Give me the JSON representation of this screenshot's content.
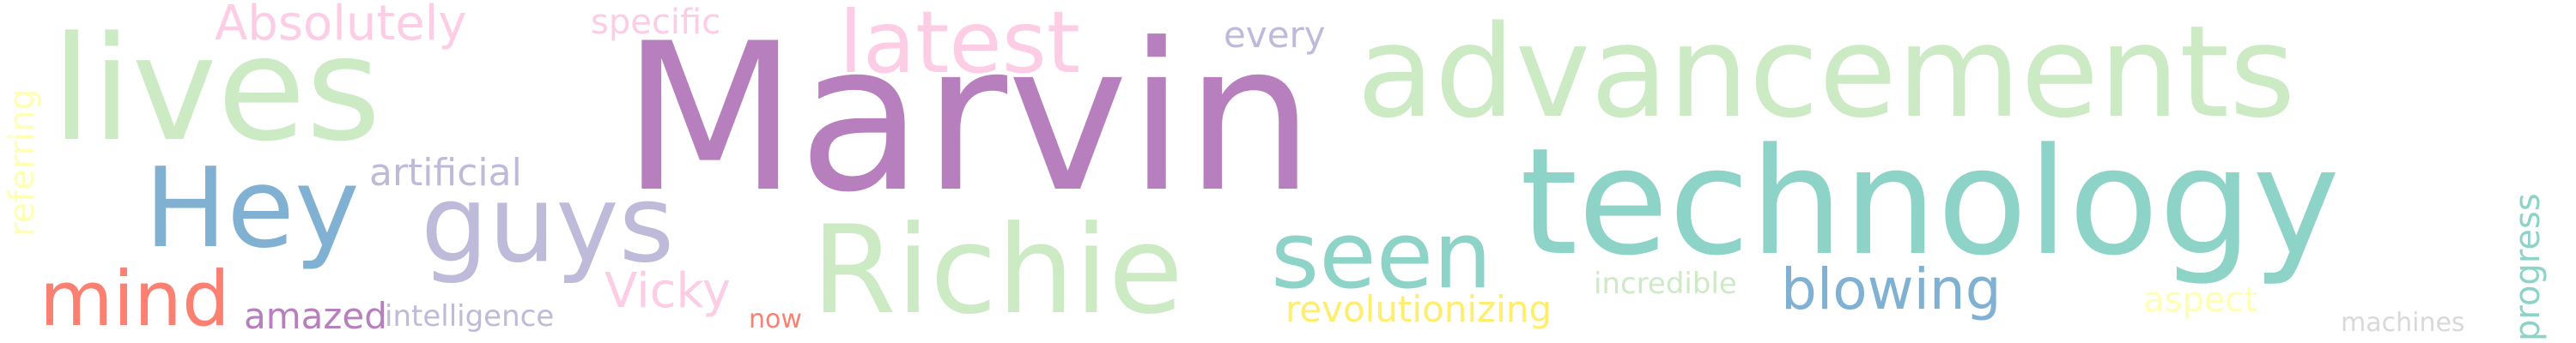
{
  "word_cloud": {
    "words": [
      {
        "id": "marvin",
        "text": "Marvin",
        "color": "#b77fbd"
      },
      {
        "id": "technology",
        "text": "technology",
        "color": "#8dd3c7"
      },
      {
        "id": "advancements",
        "text": "advancements",
        "color": "#ccebc5"
      },
      {
        "id": "lives",
        "text": "lives",
        "color": "#ccebc5"
      },
      {
        "id": "hey",
        "text": "Hey",
        "color": "#80b1d3"
      },
      {
        "id": "guys",
        "text": "guys",
        "color": "#bebada"
      },
      {
        "id": "richie",
        "text": "Richie",
        "color": "#ccebc5"
      },
      {
        "id": "seen",
        "text": "seen",
        "color": "#8dd3c7"
      },
      {
        "id": "latest",
        "text": "latest",
        "color": "#fccde5"
      },
      {
        "id": "mind",
        "text": "mind",
        "color": "#fb8072"
      },
      {
        "id": "blowing",
        "text": "blowing",
        "color": "#80b1d3"
      },
      {
        "id": "absolutely",
        "text": "Absolutely",
        "color": "#fccde5"
      },
      {
        "id": "vicky",
        "text": "Vicky",
        "color": "#fccde5"
      },
      {
        "id": "artificial",
        "text": "artificial",
        "color": "#bebada"
      },
      {
        "id": "specific",
        "text": "specific",
        "color": "#fccde5"
      },
      {
        "id": "every",
        "text": "every",
        "color": "#bebada"
      },
      {
        "id": "revolutionizing",
        "text": "revolutionizing",
        "color": "#ffed6f"
      },
      {
        "id": "amazed",
        "text": "amazed",
        "color": "#b77fbd"
      },
      {
        "id": "intelligence",
        "text": "intelligence",
        "color": "#bebada"
      },
      {
        "id": "incredible",
        "text": "incredible",
        "color": "#ccebc5"
      },
      {
        "id": "aspect",
        "text": "aspect",
        "color": "#ffffb3"
      },
      {
        "id": "now",
        "text": "now",
        "color": "#fb8072"
      },
      {
        "id": "machines",
        "text": "machines",
        "color": "#d9d9d9"
      },
      {
        "id": "progress",
        "text": "progress",
        "color": "#8dd3c7"
      },
      {
        "id": "referring",
        "text": "referring",
        "color": "#ffffb3"
      }
    ]
  }
}
